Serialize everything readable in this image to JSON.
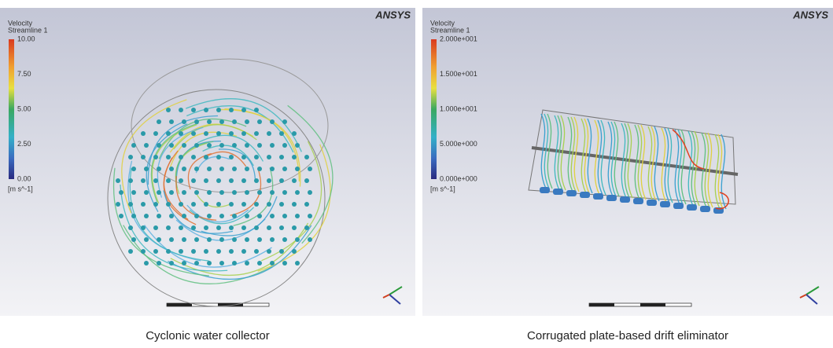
{
  "panels": [
    {
      "legend": {
        "variable": "Velocity",
        "object": "Streamline 1",
        "ticks": [
          "10.00",
          "7.50",
          "5.00",
          "2.50",
          "0.00"
        ],
        "unit": "[m s^-1]"
      },
      "logo": "ANSYS",
      "caption": "Cyclonic water collector"
    },
    {
      "legend": {
        "variable": "Velocity",
        "object": "Streamline 1",
        "ticks": [
          "2.000e+001",
          "1.500e+001",
          "1.000e+001",
          "5.000e+000",
          "0.000e+000"
        ],
        "unit": "[m s^-1]"
      },
      "logo": "ANSYS",
      "caption": "Corrugated plate-based drift eliminator"
    }
  ]
}
